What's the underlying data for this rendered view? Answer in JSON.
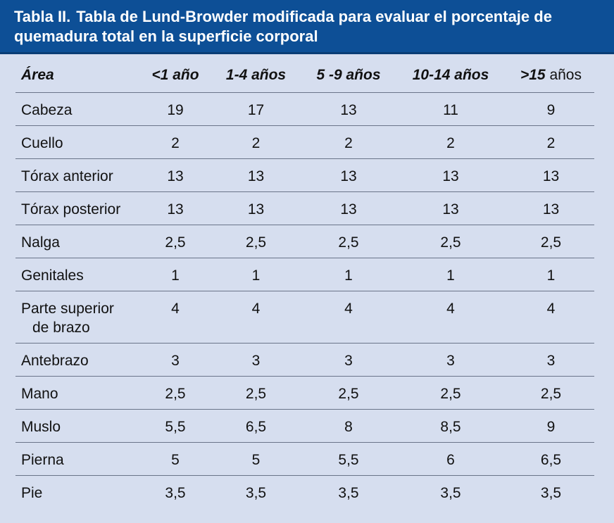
{
  "title": {
    "label": "Tabla II.",
    "text_line1": "Tabla de Lund-Browder modificada para evaluar el porcentaje de",
    "text_line2": "quemadura total en la superficie corporal"
  },
  "table": {
    "headers": {
      "area": "Área",
      "c1": "<1 año",
      "c2": "1-4 años",
      "c3": "5 -9 años",
      "c4": "10-14 años",
      "c5_num": ">15",
      "c5_unit": "años"
    },
    "rows": [
      {
        "area": "Cabeza",
        "v": [
          "19",
          "17",
          "13",
          "11",
          "9"
        ]
      },
      {
        "area": "Cuello",
        "v": [
          "2",
          "2",
          "2",
          "2",
          "2"
        ]
      },
      {
        "area": "Tórax anterior",
        "v": [
          "13",
          "13",
          "13",
          "13",
          "13"
        ]
      },
      {
        "area": "Tórax posterior",
        "v": [
          "13",
          "13",
          "13",
          "13",
          "13"
        ]
      },
      {
        "area": "Nalga",
        "v": [
          "2,5",
          "2,5",
          "2,5",
          "2,5",
          "2,5"
        ]
      },
      {
        "area": "Genitales",
        "v": [
          "1",
          "1",
          "1",
          "1",
          "1"
        ]
      },
      {
        "area_line1": "Parte superior",
        "area_line2": "de brazo",
        "v": [
          "4",
          "4",
          "4",
          "4",
          "4"
        ]
      },
      {
        "area": "Antebrazo",
        "v": [
          "3",
          "3",
          "3",
          "3",
          "3"
        ]
      },
      {
        "area": "Mano",
        "v": [
          "2,5",
          "2,5",
          "2,5",
          "2,5",
          "2,5"
        ]
      },
      {
        "area": "Muslo",
        "v": [
          "5,5",
          "6,5",
          "8",
          "8,5",
          "9"
        ]
      },
      {
        "area": "Pierna",
        "v": [
          "5",
          "5",
          "5,5",
          "6",
          "6,5"
        ]
      },
      {
        "area": "Pie",
        "v": [
          "3,5",
          "3,5",
          "3,5",
          "3,5",
          "3,5"
        ]
      }
    ]
  },
  "colors": {
    "title_background": "#0d4f96",
    "page_background": "#d6deef",
    "title_text": "#ffffff",
    "rule": "#6a7489"
  }
}
